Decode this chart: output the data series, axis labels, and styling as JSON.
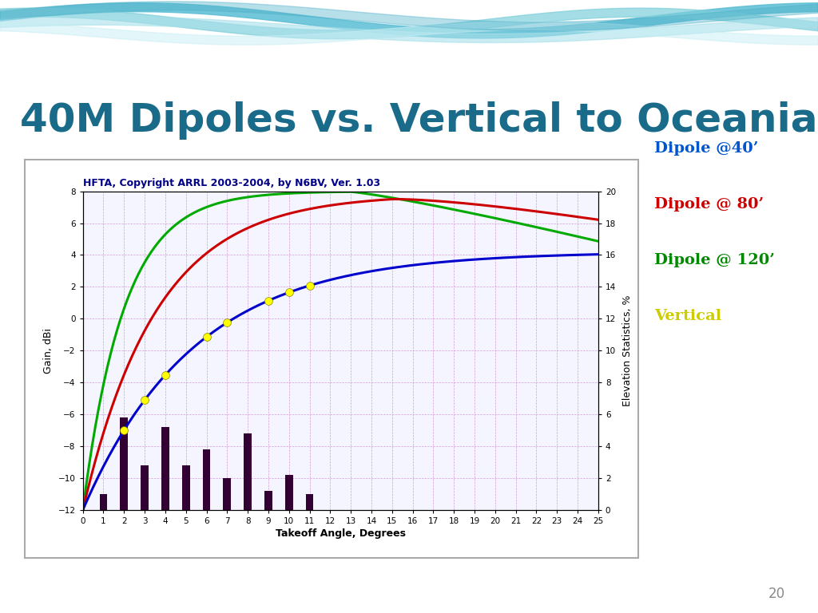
{
  "title": "40M Dipoles vs. Vertical to Oceania",
  "title_color": "#1a6b8a",
  "title_fontsize": 36,
  "chart_subtitle": "HFTA, Copyright ARRL 2003-2004, by N6BV, Ver. 1.03",
  "xlabel": "Takeoff Angle, Degrees",
  "ylabel_left": "Gain, dBi",
  "ylabel_right": "Elevation Statistics, %",
  "xlim": [
    0,
    25
  ],
  "ylim_left": [
    -12,
    8
  ],
  "ylim_right": [
    0,
    20
  ],
  "background_color": "#ffffff",
  "plot_bg_color": "#f5f5ff",
  "grid_color": "#cc88cc",
  "line_dipole40_color": "#0000cc",
  "line_dipole80_color": "#cc0000",
  "line_dipole120_color": "#00aa00",
  "bar_color": "#330033",
  "marker_color": "#ffff00",
  "legend_dipole40": "Dipole @40’",
  "legend_dipole80": "Dipole @ 80’",
  "legend_dipole120": "Dipole @ 120’",
  "legend_vertical": "Vertical",
  "legend_dipole40_color": "#0055cc",
  "legend_dipole80_color": "#cc0000",
  "legend_dipole120_color": "#008800",
  "legend_vertical_color": "#cccc00",
  "bar_x": [
    1,
    2,
    3,
    4,
    5,
    6,
    7,
    8,
    9,
    10,
    11
  ],
  "bar_heights": [
    1.0,
    5.8,
    2.8,
    5.2,
    2.8,
    3.8,
    2.0,
    4.8,
    1.2,
    2.2,
    1.0
  ],
  "marker_x": [
    2,
    3,
    4,
    6,
    7,
    9,
    10,
    11
  ],
  "page_num": "20",
  "wave_color": "#7ecfda",
  "subtitle_color": "#000088",
  "outer_border_color": "#888888"
}
